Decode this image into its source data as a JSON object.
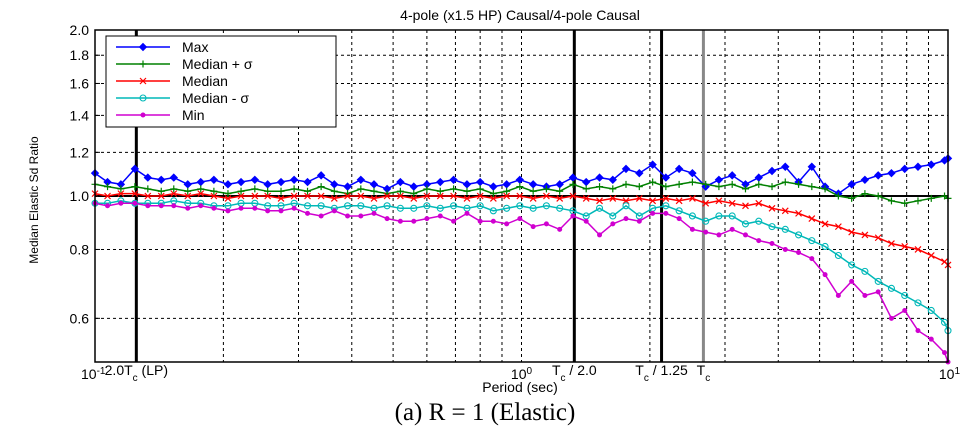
{
  "chart_data": {
    "type": "line",
    "title": "4-pole (x1.5 HP) Causal/4-pole Causal",
    "xlabel": "Period (sec)",
    "ylabel": "Median Elastic Sd Ratio",
    "caption": "(a) R = 1 (Elastic)",
    "x_scale": "log",
    "y_scale": "log",
    "xlim": [
      0.1,
      10
    ],
    "ylim": [
      0.5,
      2.0
    ],
    "grid": true,
    "legend_position": "top-left",
    "x_ticks": [
      {
        "value": 0.1,
        "base": "10",
        "exp": "-1"
      },
      {
        "value": 1,
        "base": "10",
        "exp": "0"
      },
      {
        "value": 10,
        "base": "10",
        "exp": "1"
      }
    ],
    "y_ticks": [
      "0.6",
      "0.8",
      "1.0",
      "1.2",
      "1.4",
      "1.6",
      "1.8",
      "2.0"
    ],
    "reference_lines": [
      {
        "x": 0.125,
        "label": "2.0T",
        "sub": "c",
        "suffix": " (LP)",
        "color": "#000000"
      },
      {
        "x": 1.33,
        "label": "T",
        "sub": "c",
        "suffix": " / 2.0",
        "color": "#000000"
      },
      {
        "x": 2.13,
        "label": "T",
        "sub": "c",
        "suffix": " / 1.25",
        "color": "#000000"
      },
      {
        "x": 2.67,
        "label": "T",
        "sub": "c",
        "suffix": "",
        "color": "#888888"
      }
    ],
    "x": [
      0.1,
      0.107,
      0.115,
      0.124,
      0.133,
      0.143,
      0.153,
      0.165,
      0.177,
      0.19,
      0.205,
      0.22,
      0.237,
      0.254,
      0.273,
      0.293,
      0.315,
      0.339,
      0.364,
      0.391,
      0.42,
      0.451,
      0.484,
      0.52,
      0.559,
      0.6,
      0.645,
      0.693,
      0.745,
      0.8,
      0.859,
      0.923,
      0.991,
      1.065,
      1.144,
      1.229,
      1.32,
      1.418,
      1.524,
      1.637,
      1.758,
      1.889,
      2.03,
      2.18,
      2.342,
      2.516,
      2.703,
      2.903,
      3.119,
      3.351,
      3.6,
      3.867,
      4.154,
      4.463,
      4.794,
      5.15,
      5.533,
      5.944,
      6.385,
      6.86,
      7.369,
      7.916,
      8.504,
      9.136,
      9.814,
      10
    ],
    "series": [
      {
        "name": "Max",
        "color": "#0000ff",
        "marker": "diamond",
        "values": [
          1.1,
          1.06,
          1.05,
          1.12,
          1.08,
          1.07,
          1.08,
          1.05,
          1.06,
          1.07,
          1.05,
          1.06,
          1.07,
          1.05,
          1.06,
          1.07,
          1.06,
          1.09,
          1.05,
          1.04,
          1.07,
          1.05,
          1.03,
          1.06,
          1.04,
          1.05,
          1.06,
          1.07,
          1.05,
          1.06,
          1.04,
          1.05,
          1.07,
          1.05,
          1.04,
          1.05,
          1.08,
          1.06,
          1.08,
          1.07,
          1.12,
          1.1,
          1.14,
          1.08,
          1.12,
          1.1,
          1.04,
          1.07,
          1.09,
          1.05,
          1.08,
          1.11,
          1.13,
          1.06,
          1.13,
          1.04,
          1.01,
          1.05,
          1.07,
          1.09,
          1.1,
          1.12,
          1.13,
          1.14,
          1.16,
          1.17
        ]
      },
      {
        "name": "Median + σ",
        "color": "#008000",
        "marker": "plus",
        "values": [
          1.05,
          1.04,
          1.03,
          1.04,
          1.03,
          1.02,
          1.03,
          1.02,
          1.03,
          1.02,
          1.01,
          1.02,
          1.03,
          1.02,
          1.02,
          1.03,
          1.02,
          1.04,
          1.02,
          1.01,
          1.03,
          1.02,
          1.01,
          1.02,
          1.01,
          1.03,
          1.02,
          1.03,
          1.02,
          1.03,
          1.01,
          1.02,
          1.04,
          1.02,
          1.03,
          1.02,
          1.05,
          1.03,
          1.04,
          1.03,
          1.05,
          1.04,
          1.06,
          1.04,
          1.05,
          1.06,
          1.05,
          1.04,
          1.05,
          1.03,
          1.05,
          1.04,
          1.06,
          1.05,
          1.04,
          1.03,
          1.0,
          0.99,
          1.01,
          1.0,
          0.98,
          0.97,
          0.98,
          0.99,
          1.0,
          0.99
        ]
      },
      {
        "name": "Median",
        "color": "#ff0000",
        "marker": "x",
        "values": [
          1.01,
          1.0,
          1.01,
          1.01,
          1.0,
          1.0,
          1.01,
          1.0,
          1.01,
          1.0,
          0.99,
          1.0,
          1.0,
          1.0,
          0.99,
          1.0,
          1.0,
          1.0,
          0.99,
          1.0,
          1.0,
          0.99,
          1.0,
          1.0,
          0.99,
          1.0,
          1.0,
          1.0,
          0.99,
          1.0,
          0.99,
          1.0,
          1.0,
          0.99,
          1.0,
          0.99,
          1.0,
          0.99,
          0.98,
          0.99,
          0.98,
          0.99,
          0.98,
          0.99,
          0.98,
          0.99,
          0.97,
          0.98,
          0.97,
          0.96,
          0.97,
          0.95,
          0.94,
          0.93,
          0.91,
          0.89,
          0.88,
          0.86,
          0.85,
          0.84,
          0.82,
          0.81,
          0.8,
          0.78,
          0.76,
          0.75
        ]
      },
      {
        "name": "Median - σ",
        "color": "#00b8b8",
        "marker": "circle",
        "values": [
          0.97,
          0.97,
          0.98,
          0.97,
          0.97,
          0.97,
          0.98,
          0.97,
          0.97,
          0.96,
          0.96,
          0.97,
          0.97,
          0.96,
          0.96,
          0.97,
          0.96,
          0.96,
          0.95,
          0.96,
          0.96,
          0.95,
          0.96,
          0.95,
          0.95,
          0.96,
          0.95,
          0.96,
          0.95,
          0.96,
          0.94,
          0.95,
          0.96,
          0.95,
          0.96,
          0.95,
          0.94,
          0.92,
          0.95,
          0.92,
          0.96,
          0.92,
          0.95,
          0.96,
          0.94,
          0.92,
          0.9,
          0.92,
          0.92,
          0.89,
          0.9,
          0.88,
          0.87,
          0.85,
          0.83,
          0.81,
          0.78,
          0.75,
          0.73,
          0.7,
          0.68,
          0.66,
          0.64,
          0.62,
          0.59,
          0.57
        ]
      },
      {
        "name": "Min",
        "color": "#d000d0",
        "marker": "dot",
        "values": [
          0.97,
          0.96,
          0.97,
          0.97,
          0.96,
          0.96,
          0.96,
          0.95,
          0.96,
          0.95,
          0.94,
          0.95,
          0.95,
          0.94,
          0.94,
          0.95,
          0.93,
          0.92,
          0.94,
          0.92,
          0.92,
          0.93,
          0.91,
          0.9,
          0.9,
          0.91,
          0.92,
          0.9,
          0.93,
          0.9,
          0.9,
          0.89,
          0.91,
          0.88,
          0.89,
          0.87,
          0.92,
          0.9,
          0.85,
          0.89,
          0.91,
          0.9,
          0.93,
          0.93,
          0.91,
          0.87,
          0.86,
          0.85,
          0.87,
          0.85,
          0.83,
          0.82,
          0.8,
          0.79,
          0.77,
          0.72,
          0.66,
          0.7,
          0.66,
          0.67,
          0.6,
          0.62,
          0.57,
          0.55,
          0.52,
          0.5
        ]
      }
    ]
  }
}
